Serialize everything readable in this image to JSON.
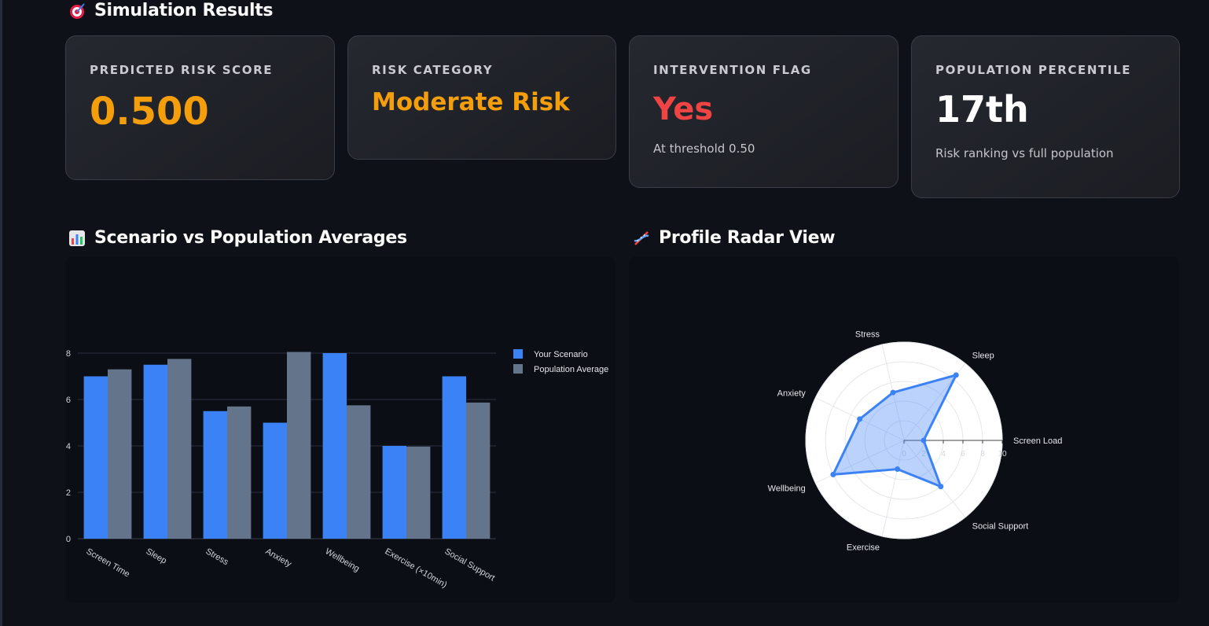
{
  "results": {
    "title": "Simulation Results",
    "icon": "target-icon"
  },
  "cards": [
    {
      "label": "PREDICTED RISK SCORE",
      "value": "0.500",
      "sub": "",
      "color": "#f59e0b"
    },
    {
      "label": "RISK CATEGORY",
      "value": "Moderate Risk",
      "sub": "",
      "color": "#f59e0b"
    },
    {
      "label": "INTERVENTION FLAG",
      "value": "Yes",
      "sub": "At threshold 0.50",
      "color": "#ef4444"
    },
    {
      "label": "POPULATION PERCENTILE",
      "value": "17th",
      "sub": "Risk ranking vs full population",
      "color": "#ffffff"
    }
  ],
  "bar_section": {
    "title": "Scenario vs Population Averages",
    "icon": "bar-chart-icon"
  },
  "radar_section": {
    "title": "Profile Radar View",
    "icon": "dna-icon"
  },
  "chart_data": [
    {
      "type": "bar",
      "categories": [
        "Screen Time",
        "Sleep",
        "Stress",
        "Anxiety",
        "Wellbeing",
        "Exercise (×10min)",
        "Social Support"
      ],
      "series": [
        {
          "name": "Your Scenario",
          "color": "#3b82f6",
          "values": [
            7.0,
            7.5,
            5.5,
            5.0,
            8.0,
            4.0,
            7.0
          ]
        },
        {
          "name": "Population Average",
          "color": "#64748b",
          "values": [
            7.3,
            7.75,
            5.7,
            8.05,
            5.75,
            3.97,
            5.87
          ]
        }
      ],
      "ylim": [
        0,
        8
      ],
      "yticks": [
        0,
        2,
        4,
        6,
        8
      ],
      "grid": true,
      "legend": "top-right"
    },
    {
      "type": "radar",
      "axes": [
        "Screen Load",
        "Sleep",
        "Stress",
        "Anxiety",
        "Wellbeing",
        "Exercise",
        "Social Support"
      ],
      "series": [
        {
          "name": "",
          "color": "#3b82f6",
          "values": [
            2.0,
            8.5,
            5.0,
            5.0,
            8.0,
            3.0,
            6.0
          ]
        }
      ],
      "range": [
        0,
        10
      ],
      "rticks": [
        "0",
        "2",
        "4",
        "6",
        "8",
        "10"
      ],
      "grid": true
    }
  ]
}
